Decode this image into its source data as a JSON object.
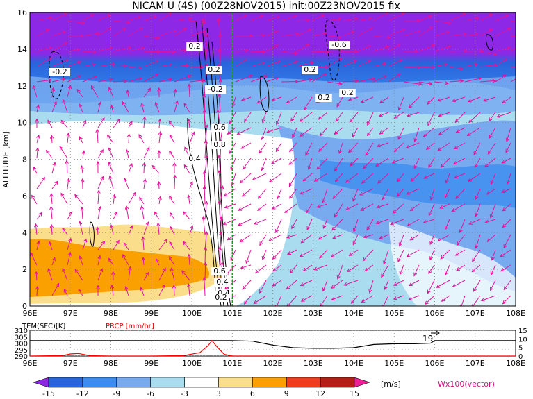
{
  "title": "NICAM U (4S) (00Z28NOV2015) init:00Z23NOV2015 fix",
  "chart_data": [
    {
      "type": "heatmap",
      "name": "main-cross-section",
      "xlabel": "",
      "ylabel": "ALTITUDE [km]",
      "xlim": [
        96,
        108
      ],
      "ylim": [
        0,
        16
      ],
      "x_ticks": [
        "96E",
        "97E",
        "98E",
        "99E",
        "100E",
        "101E",
        "102E",
        "103E",
        "104E",
        "105E",
        "106E",
        "107E",
        "108E"
      ],
      "y_ticks": [
        "0",
        "2",
        "4",
        "6",
        "8",
        "10",
        "12",
        "14",
        "16"
      ],
      "grid": true,
      "marker_line_lon": 101.0,
      "contour_labels": [
        "0.2",
        "-0.2",
        "0.2",
        "0.4",
        "0.6",
        "0.8",
        "0.4",
        "0.6",
        "0.4",
        "0.2",
        "0.2",
        "-0.6",
        "0.2",
        "0.2",
        "-0.2"
      ],
      "vector_legend": "Wx100(vector)"
    },
    {
      "type": "line",
      "name": "surface-panel",
      "xlim": [
        96,
        108
      ],
      "left_axis_label": "TEM(SFC)[K]",
      "right_axis_label": "PRCP [mm/hr]",
      "left_ticks": [
        "310",
        "305",
        "300",
        "295",
        "290"
      ],
      "right_ticks": [
        "15",
        "10",
        "5",
        "0"
      ],
      "x_ticks": [
        "96E",
        "97E",
        "98E",
        "99E",
        "100E",
        "101E",
        "102E",
        "103E",
        "104E",
        "105E",
        "106E",
        "107E",
        "108E"
      ],
      "annotation": "19",
      "series": [
        {
          "name": "TEM(SFC)",
          "color": "#000000",
          "x": [
            96.0,
            96.5,
            97.0,
            97.5,
            98.0,
            98.5,
            99.0,
            99.5,
            100.0,
            100.3,
            100.5,
            100.7,
            101.0,
            101.5,
            102.0,
            102.5,
            103.0,
            103.5,
            104.0,
            104.5,
            105.0,
            105.5,
            105.9,
            106.0,
            106.5,
            107.0,
            107.5,
            108.0
          ],
          "values": [
            302,
            302,
            302,
            302,
            302,
            302,
            302,
            302,
            302,
            302,
            302,
            302,
            302,
            301.5,
            298.5,
            296.5,
            296,
            296,
            296.5,
            299,
            299.5,
            299.5,
            300,
            302,
            302,
            302,
            302,
            302
          ]
        },
        {
          "name": "PRCP",
          "color": "#ff0000",
          "x": [
            96.0,
            96.8,
            97.0,
            97.2,
            97.5,
            98.0,
            99.0,
            99.8,
            100.2,
            100.4,
            100.5,
            100.6,
            100.8,
            101.0,
            102.0,
            104.0,
            106.0,
            108.0
          ],
          "values": [
            0,
            0.3,
            1.2,
            1.5,
            0.2,
            0,
            0,
            0.3,
            2,
            6,
            9,
            6,
            1,
            0,
            0,
            0,
            0,
            0
          ]
        }
      ]
    },
    {
      "type": "colorbar",
      "name": "colorbar",
      "unit": "[m/s]",
      "levels": [
        "-15",
        "-12",
        "-9",
        "-6",
        "-3",
        "3",
        "6",
        "9",
        "12",
        "15"
      ],
      "colors": [
        "#8c28e6",
        "#2864dc",
        "#3c8cf0",
        "#78aaf0",
        "#aadcf0",
        "#ffffff",
        "#fade8c",
        "#faa000",
        "#f03c1e",
        "#b41e14",
        "#f01e96"
      ]
    }
  ]
}
